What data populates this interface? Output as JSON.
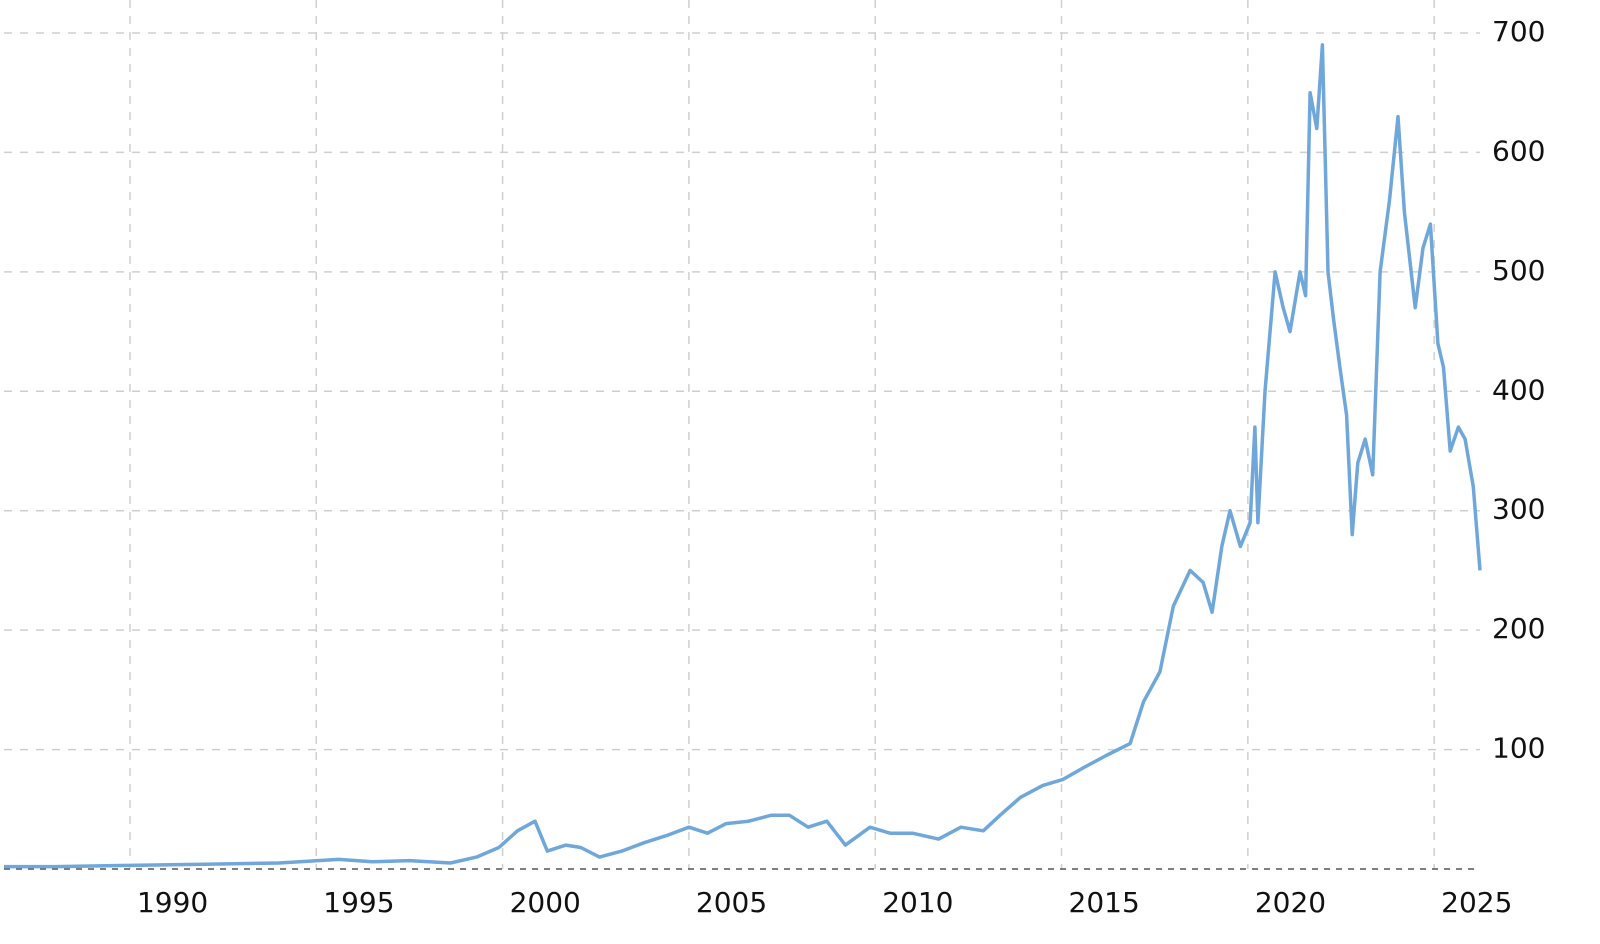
{
  "chart_data": {
    "type": "line",
    "x": [
      1986.62,
      1988,
      1990,
      1992,
      1994,
      1995.6,
      1996.5,
      1997.5,
      1998.6,
      1999.3,
      1999.9,
      2000.4,
      2000.87,
      2001.2,
      2001.7,
      2002.1,
      2002.6,
      2003.2,
      2003.8,
      2004.4,
      2005.0,
      2005.5,
      2006.0,
      2006.6,
      2007.2,
      2007.7,
      2008.2,
      2008.7,
      2009.2,
      2009.86,
      2010.4,
      2011.0,
      2011.7,
      2012.3,
      2012.9,
      2013.35,
      2013.9,
      2014.5,
      2015.04,
      2015.6,
      2016.2,
      2016.84,
      2017.2,
      2017.64,
      2018.0,
      2018.45,
      2018.8,
      2019.04,
      2019.3,
      2019.52,
      2019.8,
      2020.06,
      2020.19,
      2020.27,
      2020.46,
      2020.73,
      2020.95,
      2021.13,
      2021.4,
      2021.55,
      2021.67,
      2021.85,
      2022.0,
      2022.15,
      2022.3,
      2022.47,
      2022.65,
      2022.8,
      2022.95,
      2023.15,
      2023.35,
      2023.55,
      2023.8,
      2024.03,
      2024.2,
      2024.49,
      2024.7,
      2024.9,
      2025.1,
      2025.25,
      2025.43,
      2025.65,
      2025.83,
      2026.05,
      2026.23
    ],
    "series": [
      {
        "color": "#6fa7db",
        "values": [
          2,
          2,
          3,
          4,
          5,
          8,
          6,
          7,
          5,
          10,
          18,
          32,
          40,
          15,
          20,
          18,
          10,
          15,
          22,
          28,
          35,
          30,
          38,
          40,
          45,
          45,
          35,
          40,
          20,
          35,
          30,
          30,
          25,
          35,
          32,
          45,
          60,
          70,
          75,
          85,
          95,
          105,
          140,
          165,
          220,
          250,
          240,
          215,
          270,
          300,
          270,
          290,
          370,
          290,
          400,
          500,
          470,
          450,
          500,
          480,
          650,
          620,
          690,
          500,
          460,
          420,
          380,
          280,
          340,
          360,
          330,
          500,
          560,
          630,
          550,
          470,
          520,
          540,
          440,
          420,
          350,
          370,
          360,
          320,
          250
        ]
      }
    ],
    "xlim": [
      1986.62,
      2026.23
    ],
    "ylim": [
      0,
      700
    ],
    "xticks": [
      1990,
      1995,
      2000,
      2005,
      2010,
      2015,
      2020,
      2025
    ],
    "yticks": [
      100,
      200,
      300,
      400,
      500,
      600,
      700
    ],
    "grid": true
  }
}
